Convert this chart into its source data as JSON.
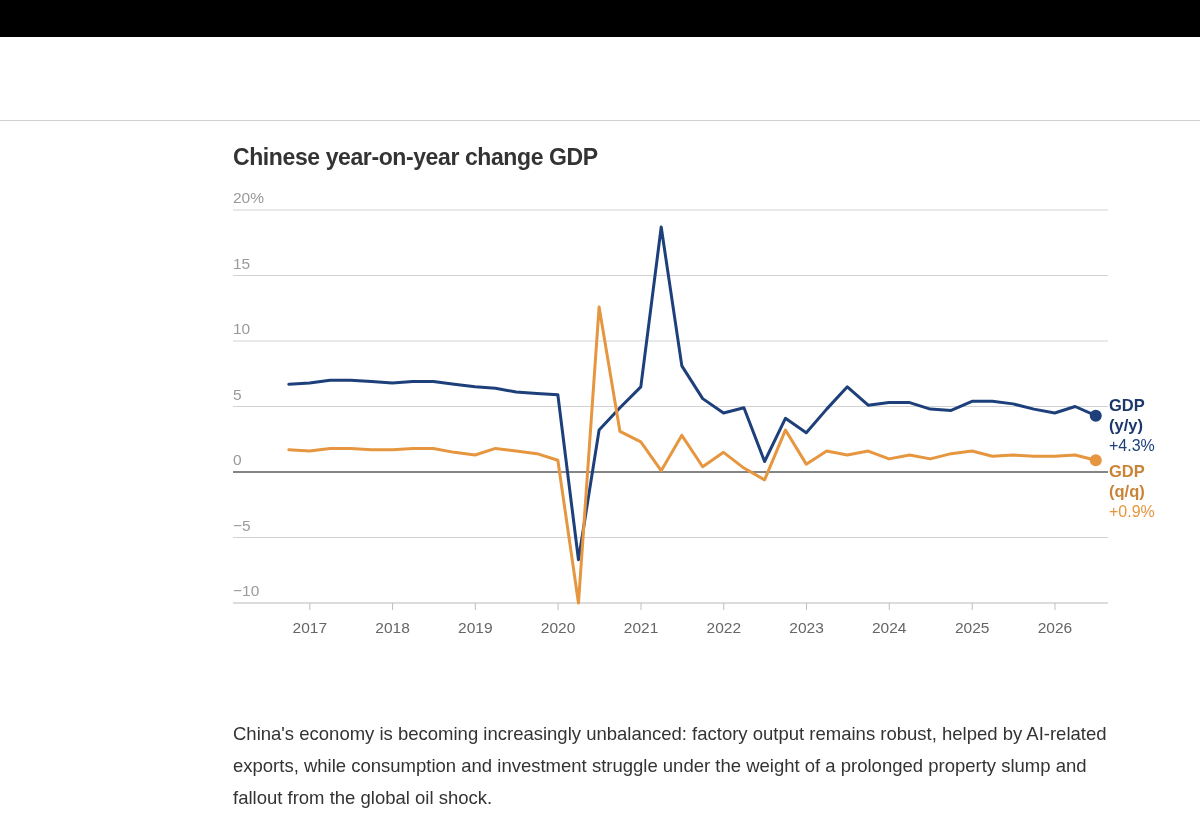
{
  "chart_data": {
    "type": "line",
    "title": "Chinese year-on-year change GDP",
    "annotations": [
      "China's economy is becoming increasingly unbalanced: factory output remains robust, helped by AI-related exports, while consumption and investment struggle under the weight of a prolonged property slump and fallout from the global oil shock."
    ],
    "x": [
      "2016-09-30",
      "2016-12-31",
      "2017-03-31",
      "2017-06-30",
      "2017-09-30",
      "2017-12-31",
      "2018-03-31",
      "2018-06-30",
      "2018-09-30",
      "2018-12-31",
      "2019-03-31",
      "2019-06-30",
      "2019-09-30",
      "2019-12-31",
      "2020-03-31",
      "2020-06-30",
      "2020-09-30",
      "2020-12-31",
      "2021-03-31",
      "2021-06-30",
      "2021-09-30",
      "2021-12-31",
      "2022-03-31",
      "2022-06-30",
      "2022-09-30",
      "2022-12-31",
      "2023-03-31",
      "2023-06-30",
      "2023-09-30",
      "2023-12-31",
      "2024-03-31",
      "2024-06-30",
      "2024-09-30",
      "2024-12-31",
      "2025-03-31",
      "2025-06-30",
      "2025-09-30",
      "2025-12-31",
      "2026-03-31",
      "2026-06-30"
    ],
    "series": [
      {
        "name": "GDP (y/y)",
        "color": "#1d3f7a",
        "values": [
          6.7,
          6.8,
          7.0,
          7.0,
          6.9,
          6.8,
          6.9,
          6.9,
          6.7,
          6.5,
          6.4,
          6.1,
          6.0,
          5.9,
          -6.7,
          3.2,
          4.9,
          6.5,
          18.7,
          8.1,
          5.6,
          4.5,
          4.9,
          0.8,
          4.1,
          3.0,
          4.8,
          6.5,
          5.1,
          5.3,
          5.3,
          4.8,
          4.7,
          5.4,
          5.4,
          5.2,
          4.8,
          4.5,
          5.0,
          4.3
        ],
        "value_labels": [
          null,
          null,
          null,
          null,
          null,
          null,
          null,
          null,
          null,
          null,
          null,
          null,
          null,
          null,
          null,
          null,
          null,
          null,
          null,
          null,
          null,
          null,
          null,
          null,
          null,
          null,
          null,
          null,
          null,
          null,
          null,
          null,
          null,
          null,
          null,
          null,
          null,
          null,
          null,
          "+4.3%"
        ]
      },
      {
        "name": "GDP (q/q)",
        "color": "#e5963f",
        "values": [
          1.7,
          1.6,
          1.8,
          1.8,
          1.7,
          1.7,
          1.8,
          1.8,
          1.5,
          1.3,
          1.8,
          1.6,
          1.4,
          0.9,
          -10.0,
          12.6,
          3.1,
          2.3,
          0.1,
          2.8,
          0.4,
          1.5,
          0.3,
          -0.6,
          3.2,
          0.6,
          1.6,
          1.3,
          1.6,
          1.0,
          1.3,
          1.0,
          1.4,
          1.6,
          1.2,
          1.3,
          1.2,
          1.2,
          1.3,
          0.9
        ],
        "value_labels": [
          null,
          null,
          null,
          null,
          null,
          null,
          null,
          null,
          null,
          null,
          null,
          null,
          null,
          null,
          null,
          null,
          null,
          null,
          null,
          null,
          null,
          null,
          null,
          null,
          null,
          null,
          null,
          null,
          null,
          null,
          null,
          null,
          null,
          null,
          null,
          null,
          null,
          null,
          null,
          "+0.9%"
        ]
      }
    ],
    "xlim": [
      "2016-01-28",
      "2026-08-23"
    ],
    "xticks": [
      {
        "value": "2017-01-01",
        "label": "2017"
      },
      {
        "value": "2018-01-01",
        "label": "2018"
      },
      {
        "value": "2019-01-01",
        "label": "2019"
      },
      {
        "value": "2020-01-01",
        "label": "2020"
      },
      {
        "value": "2021-01-01",
        "label": "2021"
      },
      {
        "value": "2022-01-01",
        "label": "2022"
      },
      {
        "value": "2023-01-01",
        "label": "2023"
      },
      {
        "value": "2024-01-01",
        "label": "2024"
      },
      {
        "value": "2025-01-01",
        "label": "2025"
      },
      {
        "value": "2026-01-01",
        "label": "2026"
      }
    ],
    "ylim": [
      -10,
      20
    ],
    "yticks": [
      {
        "value": -10,
        "label": "−10"
      },
      {
        "value": -5,
        "label": "−5"
      },
      0,
      5,
      10,
      15,
      {
        "value": 20,
        "label": "20%"
      }
    ],
    "grid": "y",
    "ref_lines": [
      {
        "axis": "y",
        "value": 0,
        "color": "#222222"
      }
    ]
  }
}
